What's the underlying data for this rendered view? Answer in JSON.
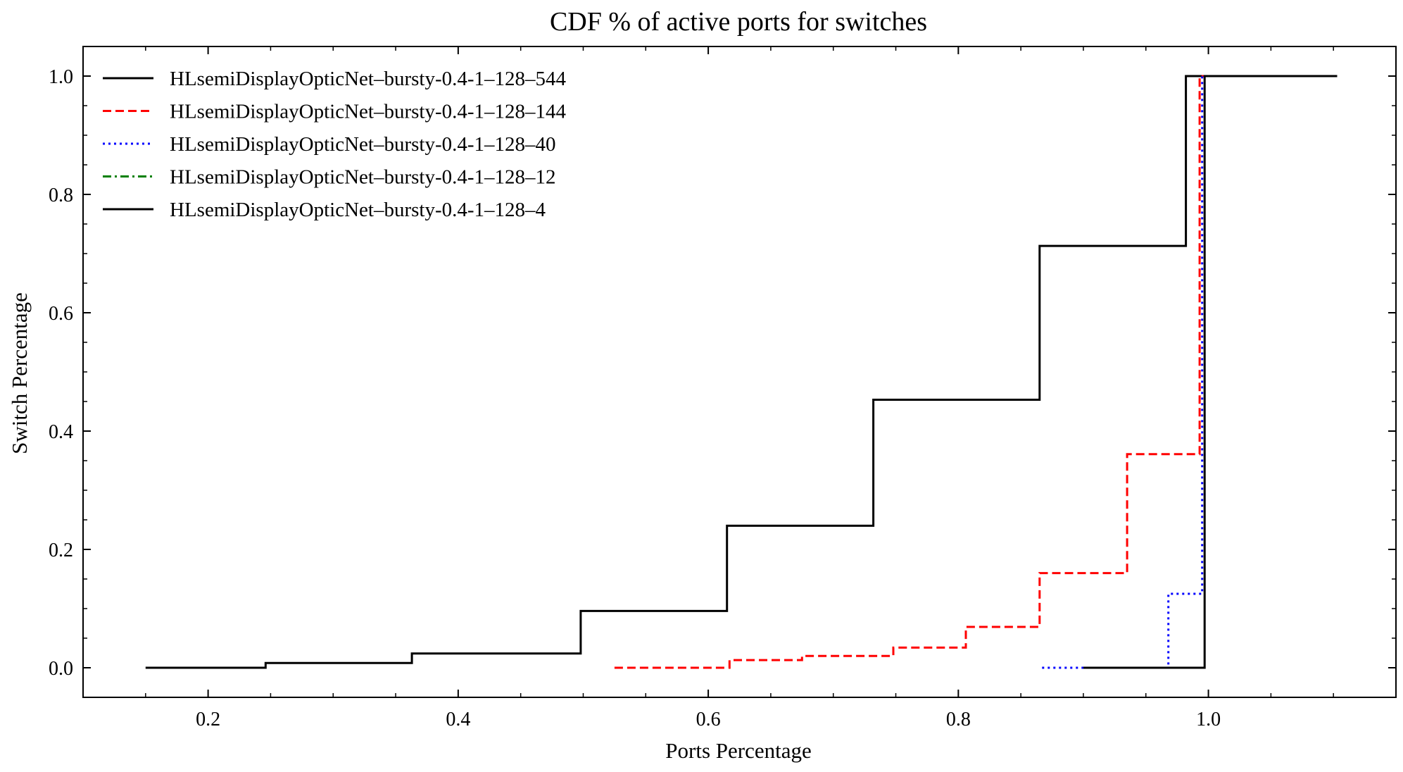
{
  "chart_data": {
    "type": "line",
    "step": "post",
    "title": "CDF % of active ports for switches",
    "xlabel": "Ports Percentage",
    "ylabel": "Switch Percentage",
    "xlim": [
      0.1,
      1.15
    ],
    "ylim": [
      -0.05,
      1.05
    ],
    "x_ticks": [
      0.2,
      0.4,
      0.6,
      0.8,
      1.0
    ],
    "x_tick_labels": [
      "0.2",
      "0.4",
      "0.6",
      "0.8",
      "1.0"
    ],
    "y_ticks": [
      0.0,
      0.2,
      0.4,
      0.6,
      0.8,
      1.0
    ],
    "y_tick_labels": [
      "0.0",
      "0.2",
      "0.4",
      "0.6",
      "0.8",
      "1.0"
    ],
    "grid": false,
    "legend_position": "top-left",
    "series": [
      {
        "name": "HLsemiDisplayOpticNet–bursty-0.4-1–128–544",
        "color": "#000000",
        "dash": "solid",
        "x": [
          0.15,
          0.246,
          0.363,
          0.498,
          0.615,
          0.732,
          0.865,
          0.982,
          1.103
        ],
        "y": [
          0.0,
          0.008,
          0.024,
          0.096,
          0.24,
          0.453,
          0.713,
          1.0,
          1.0
        ]
      },
      {
        "name": "HLsemiDisplayOpticNet–bursty-0.4-1–128–144",
        "color": "#ff0000",
        "dash": "dashed",
        "x": [
          0.525,
          0.617,
          0.675,
          0.748,
          0.806,
          0.865,
          0.935,
          0.993,
          0.997
        ],
        "y": [
          0.0,
          0.013,
          0.02,
          0.034,
          0.069,
          0.16,
          0.361,
          1.0,
          1.0
        ]
      },
      {
        "name": "HLsemiDisplayOpticNet–bursty-0.4-1–128–40",
        "color": "#0000ff",
        "dash": "dotted",
        "x": [
          0.867,
          0.968,
          0.995,
          0.997
        ],
        "y": [
          0.0,
          0.125,
          1.0,
          1.0
        ]
      },
      {
        "name": "HLsemiDisplayOpticNet–bursty-0.4-1–128–12",
        "color": "#008000",
        "dash": "dashdot",
        "x": [
          0.998,
          1.0
        ],
        "y": [
          1.0,
          1.0
        ]
      },
      {
        "name": "HLsemiDisplayOpticNet–bursty-0.4-1–128–4",
        "color": "#000000",
        "dash": "solid",
        "x": [
          0.9,
          0.997,
          1.0
        ],
        "y": [
          0.0,
          1.0,
          1.0
        ]
      }
    ]
  }
}
